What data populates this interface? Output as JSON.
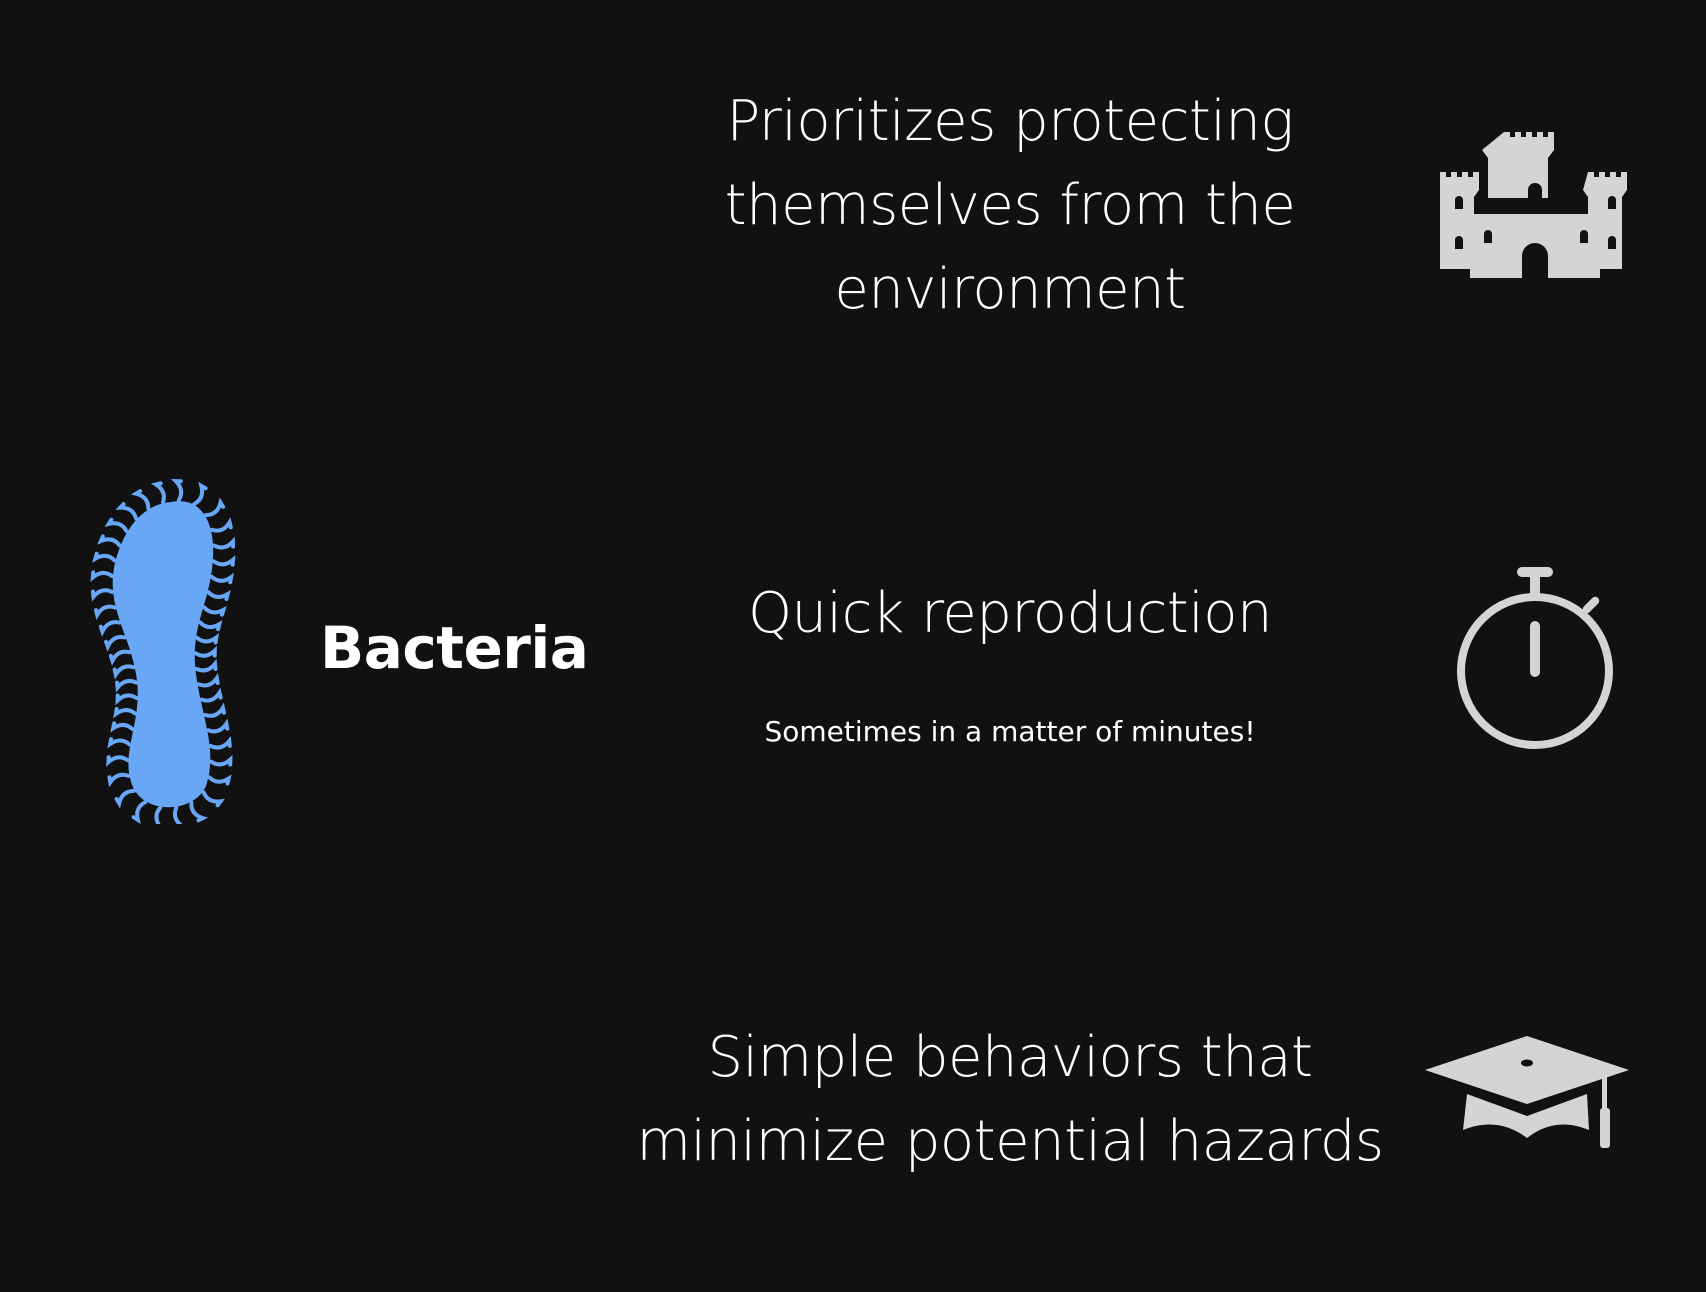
{
  "subject": {
    "label": "Bacteria",
    "icon": "bacterium-icon",
    "color": "#68a6f6"
  },
  "points": [
    {
      "text": "Prioritizes protecting themselves from the environment",
      "lines": [
        "Prioritizes protecting",
        "themselves from the",
        "environment"
      ],
      "icon": "castle-icon"
    },
    {
      "text": "Quick reproduction",
      "lines": [
        "Quick reproduction"
      ],
      "note": "Sometimes in a matter of minutes!",
      "icon": "stopwatch-icon"
    },
    {
      "text": "Simple behaviors that minimize potential hazards",
      "lines": [
        "Simple behaviors that",
        "minimize potential hazards"
      ],
      "icon": "graduation-cap-icon"
    }
  ],
  "colors": {
    "background": "#111111",
    "text": "#ffffff",
    "icons": "#d4d4d4"
  }
}
